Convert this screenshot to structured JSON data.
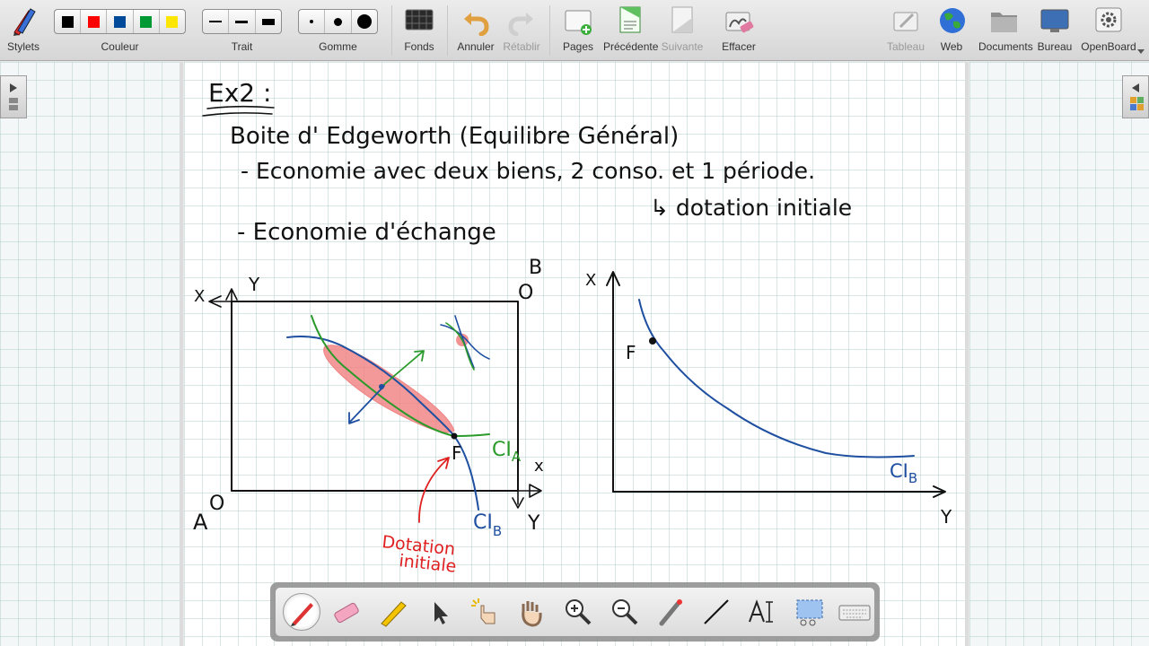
{
  "toolbar": {
    "stylets": "Stylets",
    "couleur": "Couleur",
    "trait": "Trait",
    "gomme": "Gomme",
    "fonds": "Fonds",
    "annuler": "Annuler",
    "retablir": "Rétablir",
    "pages": "Pages",
    "precedente": "Précédente",
    "suivante": "Suivante",
    "effacer": "Effacer",
    "tableau": "Tableau",
    "web": "Web",
    "documents": "Documents",
    "bureau": "Bureau",
    "openboard": "OpenBoard",
    "colors": [
      "#000000",
      "#ff0000",
      "#004a99",
      "#009933",
      "#ffe600"
    ]
  },
  "board": {
    "title": "Ex2 :",
    "line1": "Boite d' Edgeworth (Equilibre Général)",
    "line2": "- Economie avec deux biens, 2 conso. et 1 période.",
    "line3": "↳ dotation initiale",
    "line4": "- Economie d'échange",
    "box": {
      "label_B": "B",
      "label_O_top": "O",
      "label_Y_top": "Y",
      "label_X_topleft": "X",
      "label_A": "A",
      "label_O_bottom": "O",
      "label_X_right": "x",
      "label_Y_bottom": "Y",
      "label_F": "F",
      "ci_a_label": "CI",
      "ci_a_sub": "A",
      "ci_b_label": "CI",
      "ci_b_sub": "B",
      "dotation": "Dotation",
      "dotation2": "initiale"
    },
    "graph2": {
      "label_X": "X",
      "label_Y": "Y",
      "label_F": "F",
      "ci_label": "CI",
      "ci_sub": "B"
    },
    "ink_colors": {
      "black": "#111111",
      "blue": "#1f4fa0",
      "green": "#2a9a2a",
      "red": "#e02020",
      "pink": "#f08080"
    }
  }
}
